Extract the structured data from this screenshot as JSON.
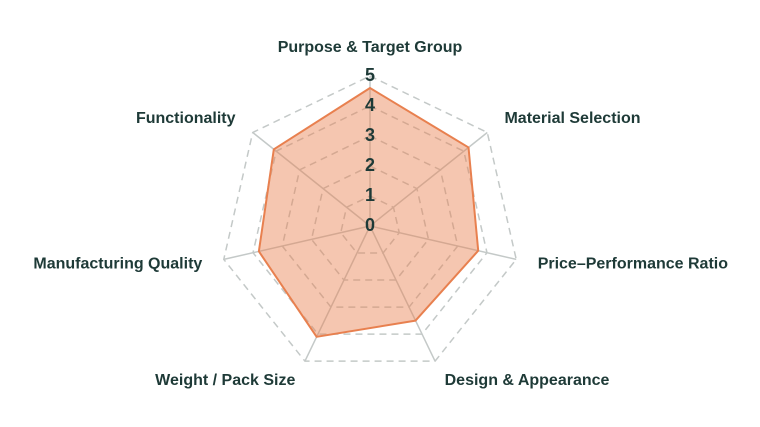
{
  "chart_data": {
    "type": "radar",
    "categories": [
      "Purpose & Target Group",
      "Material Selection",
      "Price–Performance Ratio",
      "Design & Appearance",
      "Weight / Pack Size",
      "Manufacturing Quality",
      "Functionality"
    ],
    "values": [
      4.6,
      4.2,
      3.7,
      3.5,
      4.1,
      3.8,
      4.1
    ],
    "color": "#e8804f",
    "rlim": [
      0,
      5
    ],
    "rticks": [
      0,
      1,
      2,
      3,
      4,
      5
    ],
    "grid": true
  }
}
